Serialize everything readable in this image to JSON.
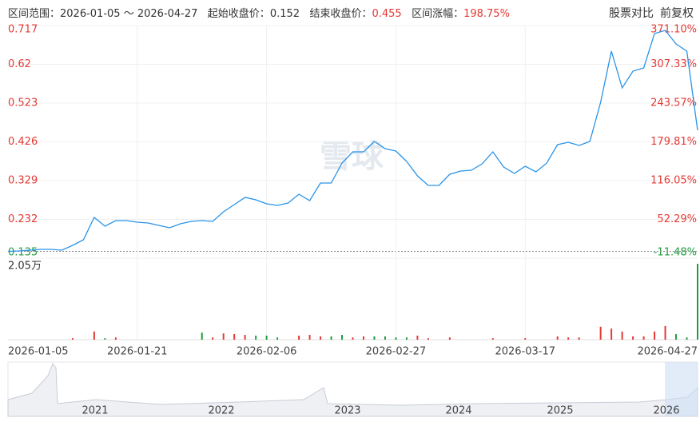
{
  "header": {
    "range_label": "区间范围：",
    "range": "2026-01-05 ～ 2026-04-27",
    "start_label": "起始收盘价：",
    "start_price": 0.152,
    "end_label": "结束收盘价：",
    "end_price": 0.455,
    "change_label": "区间涨幅：",
    "change": "198.75%"
  },
  "buttons": [
    "股票对比",
    "前复权"
  ],
  "watermark": "雪球",
  "chart_data": {
    "type": "line",
    "categories": [
      "2026-01-05",
      null,
      null,
      null,
      null,
      null,
      null,
      null,
      null,
      null,
      null,
      null,
      "2026-01-21",
      null,
      null,
      null,
      null,
      null,
      null,
      null,
      null,
      null,
      null,
      null,
      "2026-02-06",
      null,
      null,
      null,
      null,
      null,
      null,
      null,
      null,
      null,
      null,
      null,
      "2026-02-27",
      null,
      null,
      null,
      null,
      null,
      null,
      null,
      null,
      null,
      null,
      null,
      "2026-03-17",
      null,
      null,
      null,
      null,
      null,
      null,
      null,
      null,
      null,
      null,
      null,
      null,
      null,
      null,
      null,
      "2026-04-27"
    ],
    "series": [
      {
        "color": "#2a94e8",
        "values": [
          0.152,
          0.153,
          0.155,
          0.157,
          0.157,
          0.155,
          0.167,
          0.181,
          0.237,
          0.215,
          0.229,
          0.229,
          0.225,
          0.223,
          0.217,
          0.211,
          0.221,
          0.227,
          0.229,
          0.227,
          0.251,
          0.269,
          0.287,
          0.281,
          0.271,
          0.267,
          0.273,
          0.295,
          0.279,
          0.323,
          0.323,
          0.373,
          0.401,
          0.401,
          0.427,
          0.409,
          0.403,
          0.377,
          0.341,
          0.317,
          0.317,
          0.345,
          0.353,
          0.355,
          0.371,
          0.401,
          0.363,
          0.347,
          0.365,
          0.351,
          0.373,
          0.419,
          0.425,
          0.417,
          0.427,
          0.525,
          0.653,
          0.561,
          0.603,
          0.611,
          0.697,
          0.705,
          0.671,
          0.653,
          0.455
        ]
      }
    ],
    "ylim": [
      0.135,
      0.717
    ],
    "yticks": [
      0.135,
      0.232,
      0.329,
      0.426,
      0.523,
      0.62,
      0.717
    ],
    "y2lim": [
      -11.48,
      371.1
    ],
    "y2ticks": [
      {
        "value": -11.48,
        "label": "-11.48%"
      },
      {
        "value": 52.29,
        "label": "52.29%"
      },
      {
        "value": 116.05,
        "label": "116.05%"
      },
      {
        "value": 179.81,
        "label": "179.81%"
      },
      {
        "value": 243.57,
        "label": "243.57%"
      },
      {
        "value": 307.33,
        "label": "307.33%"
      },
      {
        "value": 371.1,
        "label": "371.10%"
      }
    ],
    "up_color": "#e53935",
    "down_color": "#1f9d3f",
    "grid": true,
    "volume": {
      "ylim": [
        0,
        2.05
      ],
      "yticks": [
        {
          "value": 2.05,
          "label": "2.05万"
        }
      ],
      "values": [
        null,
        null,
        null,
        null,
        null,
        null,
        0.04,
        null,
        0.22,
        0.04,
        0.06,
        null,
        null,
        null,
        null,
        null,
        null,
        null,
        0.19,
        0.06,
        0.17,
        0.15,
        0.13,
        0.11,
        0.11,
        0.06,
        null,
        0.11,
        0.13,
        0.09,
        0.09,
        0.13,
        0.06,
        0.09,
        0.09,
        0.09,
        0.06,
        0.06,
        0.11,
        0.04,
        null,
        0.06,
        null,
        null,
        null,
        0.04,
        null,
        null,
        0.04,
        null,
        null,
        0.09,
        0.06,
        0.06,
        null,
        0.35,
        0.3,
        0.22,
        0.09,
        0.09,
        0.22,
        0.37,
        0.15,
        0.06,
        2.05
      ],
      "colors": [
        null,
        null,
        null,
        null,
        null,
        null,
        "#e53935",
        null,
        "#e53935",
        "#1f9d3f",
        "#e53935",
        null,
        null,
        null,
        null,
        null,
        null,
        null,
        "#1f9d3f",
        "#e53935",
        "#e53935",
        "#e53935",
        "#e53935",
        "#1f9d3f",
        "#1f9d3f",
        "#1f9d3f",
        null,
        "#e53935",
        "#e53935",
        "#e53935",
        "#1f9d3f",
        "#1f9d3f",
        "#e53935",
        "#e53935",
        "#1f9d3f",
        "#1f9d3f",
        "#1f9d3f",
        "#1f9d3f",
        "#e53935",
        "#e53935",
        null,
        "#e53935",
        null,
        null,
        null,
        "#e53935",
        null,
        null,
        "#e53935",
        null,
        null,
        "#e53935",
        "#e53935",
        "#e53935",
        null,
        "#e53935",
        "#e53935",
        "#e53935",
        "#e53935",
        "#e53935",
        "#e53935",
        "#e53935",
        "#1f9d3f",
        "#1f9d3f",
        "#1f9d3f"
      ]
    }
  },
  "navigator": {
    "years": [
      "2021",
      "2022",
      "2023",
      "2024",
      "2025",
      "2026"
    ]
  }
}
